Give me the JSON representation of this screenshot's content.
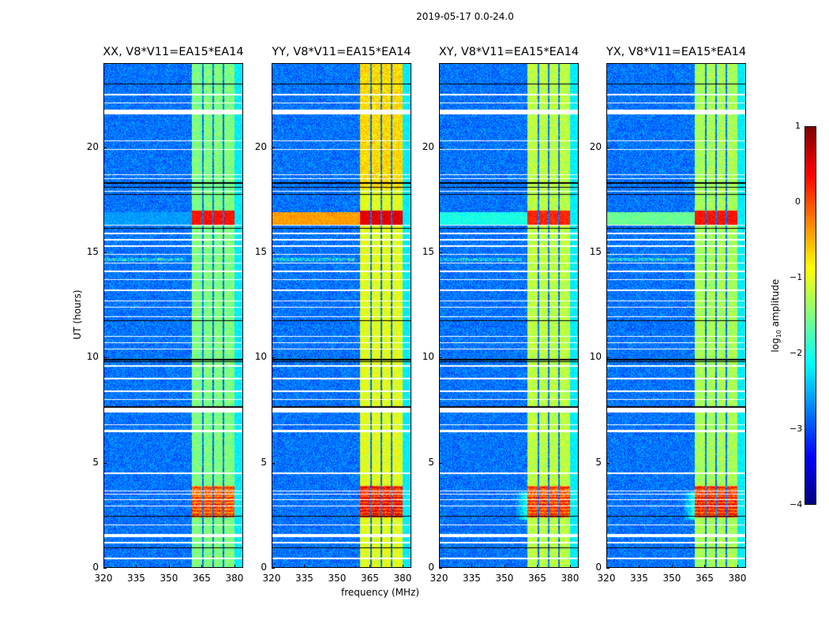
{
  "chart_data": {
    "type": "heatmap",
    "title": "2019-05-17 0.0-24.0",
    "xlabel": "frequency (MHz)",
    "ylabel": "UT (hours)",
    "xlim": [
      320,
      384
    ],
    "ylim": [
      0,
      24
    ],
    "xticks": [
      "320",
      "335",
      "350",
      "365",
      "380"
    ],
    "yticks": [
      "0",
      "5",
      "10",
      "15",
      "20"
    ],
    "colorbar": {
      "label": "log10 amplitude",
      "label_main": "log",
      "label_sub": "10",
      "label_rest": " amplitude",
      "colormap": "jet",
      "range": [
        -4,
        1
      ],
      "ticks": [
        "1",
        "0",
        "−1",
        "−2",
        "−3",
        "−4"
      ]
    },
    "background_level": -2.8,
    "signal_channels_mhz": [
      [
        360.5,
        365.2
      ],
      [
        365.8,
        369.9
      ],
      [
        370.5,
        374.6
      ],
      [
        375.2,
        380.0
      ]
    ],
    "flagged_time_ranges_hours": [
      [
        21.55,
        21.8
      ],
      [
        7.4,
        7.6
      ],
      [
        6.45,
        6.55
      ],
      [
        1.45,
        1.6
      ],
      [
        0.4,
        0.48
      ]
    ],
    "flagged_time_lines_hours": [
      22.1,
      22.5,
      20.3,
      19.9,
      18.7,
      18.5,
      17.9,
      16.3,
      15.9,
      15.6,
      15.3,
      14.9,
      14.5,
      14.1,
      13.7,
      13.2,
      12.7,
      12.4,
      11.95,
      11.0,
      10.7,
      10.4,
      9.6,
      9.0,
      8.4,
      8.0,
      6.8,
      4.5,
      3.65,
      3.5,
      3.25,
      2.95,
      2.05,
      1.2
    ],
    "gap_lines_hours": [
      23.0,
      18.3,
      18.1,
      17.75,
      16.15,
      11.75,
      9.9,
      9.8,
      7.65,
      2.45,
      0.95
    ],
    "panels": [
      {
        "title": "XX, V8*V11=EA15*EA14",
        "band_level": -1.5,
        "event_levels": {
          "2.4-3.9h": -0.1,
          "16.3-17.0h": 0.3
        },
        "broadband_16h_level": -2.6
      },
      {
        "title": "YY, V8*V11=EA15*EA14",
        "band_level": -1.0,
        "event_levels": {
          "2.4-3.9h": 0.2,
          "16.3-17.0h": 0.5
        },
        "broadband_16h_level": -0.4
      },
      {
        "title": "XY, V8*V11=EA15*EA14",
        "band_level": -1.2,
        "event_levels": {
          "2.4-3.9h": 0.0,
          "16.3-17.0h": 0.2
        },
        "broadband_16h_level": -2.0
      },
      {
        "title": "YX, V8*V11=EA15*EA14",
        "band_level": -1.3,
        "event_levels": {
          "2.4-3.9h": 0.1,
          "16.3-17.0h": 0.3
        },
        "broadband_16h_level": -1.6
      }
    ]
  }
}
